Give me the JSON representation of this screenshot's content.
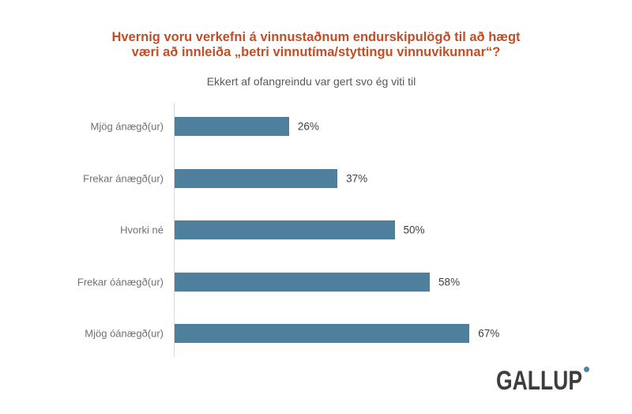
{
  "page": {
    "background": "#FFFFFF"
  },
  "title": {
    "line1": "Hvernig voru verkefni á vinnustaðnum endurskipulögð til að hægt",
    "line2": "væri að innleiða „betri vinnutíma/styttingu vinnuvikunnar“?",
    "color": "#C04F28"
  },
  "subtitle": "Ekkert af ofangreindu var gert svo ég viti til",
  "chart_data": {
    "type": "bar",
    "orientation": "horizontal",
    "title": "Hvernig voru verkefni á vinnustaðnum endurskipulögð til að hægt væri að innleiða „betri vinnutíma/styttingu vinnuvikunnar“?",
    "subtitle": "Ekkert af ofangreindu var gert svo ég viti til",
    "categories": [
      "Mjög ánægð(ur)",
      "Frekar ánægð(ur)",
      "Hvorki né",
      "Frekar óánægð(ur)",
      "Mjög óánægð(ur)"
    ],
    "values": [
      26,
      37,
      50,
      58,
      67
    ],
    "value_labels": [
      "26%",
      "37%",
      "50%",
      "58%",
      "67%"
    ],
    "xlim": [
      0,
      100
    ],
    "xlabel": "",
    "ylabel": "",
    "grid": false,
    "legend": "none",
    "bar_color": "#4E7F9C",
    "axis_line_color": "#D9D9D9",
    "category_label_color": "#707070",
    "value_label_color": "#3F3F3F"
  },
  "logo": {
    "text": "GALLUP",
    "text_color": "#3D3D3D",
    "dot_color": "#4E85A4"
  }
}
